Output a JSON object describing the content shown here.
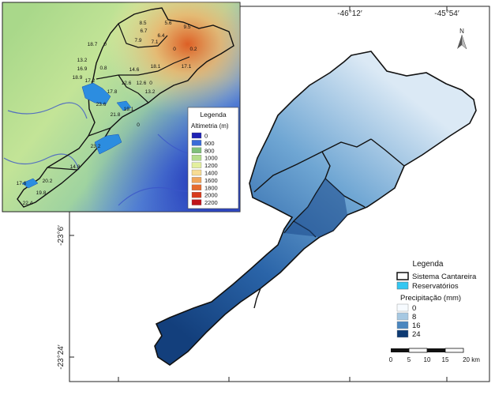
{
  "coordinates": {
    "lon_top": [
      "-46°12′",
      "-45°54′"
    ],
    "lat_left": [
      "-23°6′",
      "-23°24′"
    ]
  },
  "north_arrow": {
    "label": "N"
  },
  "legend_main": {
    "title": "Legenda",
    "boundary_label": "Sistema Cantareira",
    "reservoir_label": "Reservatórios",
    "precip_title": "Precipitação (mm)",
    "precip_classes": [
      {
        "label": "0",
        "color": "#f7fbff"
      },
      {
        "label": "8",
        "color": "#a6c8e2"
      },
      {
        "label": "16",
        "color": "#4a86bf"
      },
      {
        "label": "24",
        "color": "#0d3a73"
      }
    ],
    "reservoir_color": "#32c7f2"
  },
  "scale_bar": {
    "ticks": [
      "0",
      "5",
      "10",
      "15",
      "20 km"
    ]
  },
  "inset": {
    "legend": {
      "title": "Legenda",
      "subtitle": "Altimetria (m)",
      "classes": [
        {
          "label": "0",
          "color": "#1f22b4"
        },
        {
          "label": "600",
          "color": "#3a6bd8"
        },
        {
          "label": "800",
          "color": "#7fc07a"
        },
        {
          "label": "1000",
          "color": "#b5dd8c"
        },
        {
          "label": "1200",
          "color": "#e3ef9e"
        },
        {
          "label": "1400",
          "color": "#f7dc93"
        },
        {
          "label": "1600",
          "color": "#f0a55a"
        },
        {
          "label": "1800",
          "color": "#e66b2e"
        },
        {
          "label": "2000",
          "color": "#d83a1c"
        },
        {
          "label": "2200",
          "color": "#c0141a"
        }
      ]
    },
    "station_values": [
      "8.5",
      "5.6",
      "9.5",
      "6.7",
      "6.4",
      "18.7",
      "0",
      "7.9",
      "7.1",
      "0",
      "0.2",
      "13.2",
      "0.8",
      "14.6",
      "18.1",
      "17.1",
      "16.9",
      "18.9",
      "12.6",
      "12.6",
      "0",
      "17.2",
      "13.2",
      "17.8",
      "23.6",
      "19.1",
      "21.8",
      "0",
      "23.2",
      "14.8",
      "17.6",
      "20.2",
      "19.8",
      "22.4"
    ]
  }
}
